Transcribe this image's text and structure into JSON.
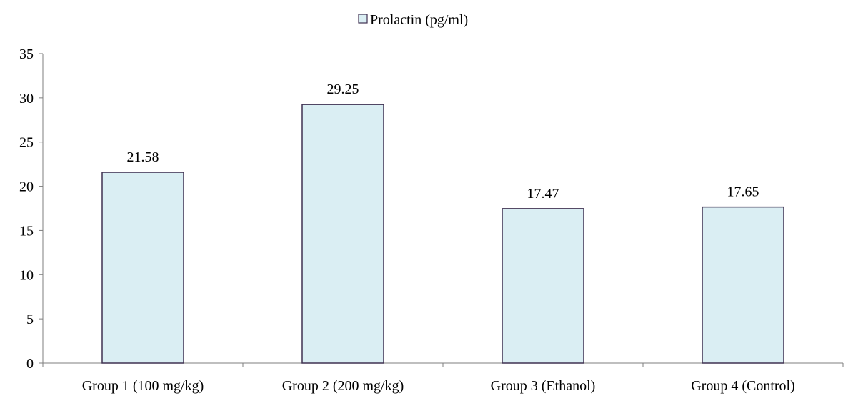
{
  "chart_data": {
    "type": "bar",
    "legend": {
      "position": "top-center",
      "label": "Prolactin (pg/ml)"
    },
    "categories": [
      "Group 1 (100 mg/kg)",
      "Group 2 (200 mg/kg)",
      "Group 3 (Ethanol)",
      "Group 4 (Control)"
    ],
    "series": [
      {
        "name": "Prolactin (pg/ml)",
        "values": [
          21.58,
          29.25,
          17.47,
          17.65
        ],
        "value_labels": [
          "21.58",
          "29.25",
          "17.47",
          "17.65"
        ]
      }
    ],
    "y_axis": {
      "min": 0,
      "max": 35,
      "step": 5,
      "ticks": [
        "0",
        "5",
        "10",
        "15",
        "20",
        "25",
        "30",
        "35"
      ]
    },
    "grid": false,
    "colors": {
      "bar_fill": "#DAEEF3",
      "bar_stroke": "#3F3151",
      "axis": "#7F7F7F"
    }
  }
}
